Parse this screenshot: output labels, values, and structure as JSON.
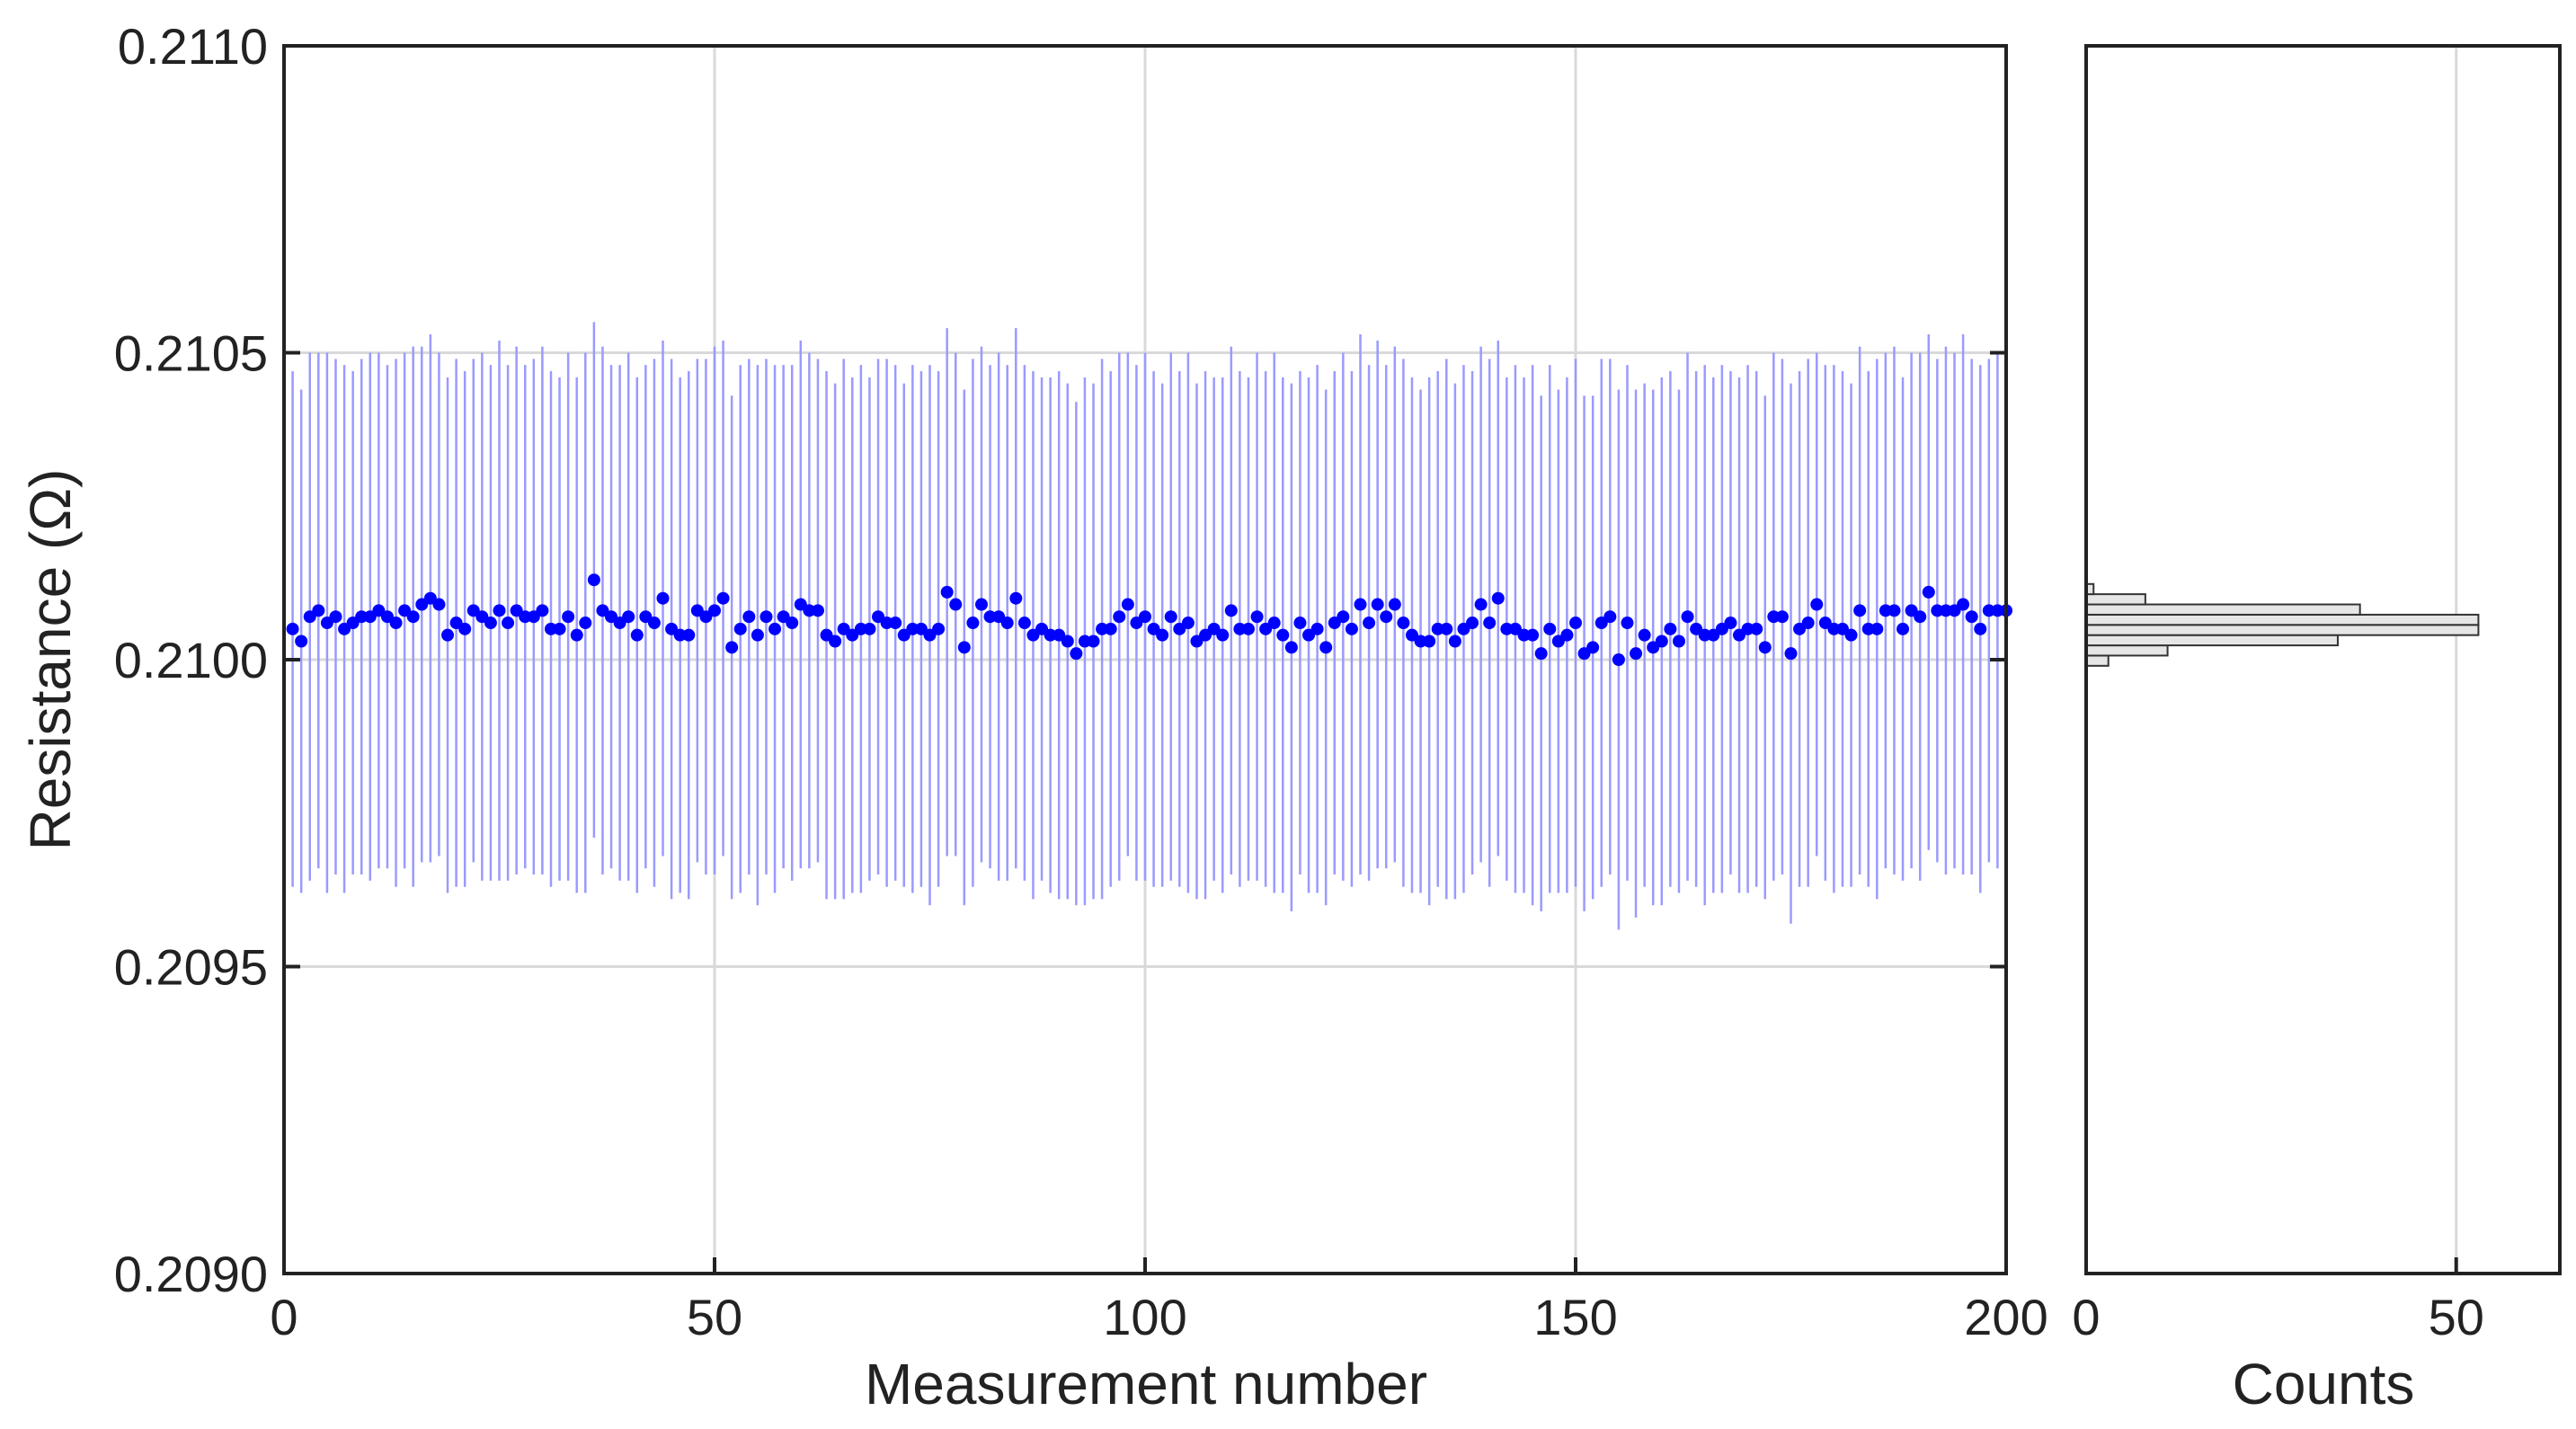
{
  "chart_data": [
    {
      "type": "scatter",
      "xlabel": "Measurement number",
      "ylabel": "Resistance (Ω)",
      "x": [
        1,
        2,
        3,
        4,
        5,
        6,
        7,
        8,
        9,
        10,
        11,
        12,
        13,
        14,
        15,
        16,
        17,
        18,
        19,
        20,
        21,
        22,
        23,
        24,
        25,
        26,
        27,
        28,
        29,
        30,
        31,
        32,
        33,
        34,
        35,
        36,
        37,
        38,
        39,
        40,
        41,
        42,
        43,
        44,
        45,
        46,
        47,
        48,
        49,
        50,
        51,
        52,
        53,
        54,
        55,
        56,
        57,
        58,
        59,
        60,
        61,
        62,
        63,
        64,
        65,
        66,
        67,
        68,
        69,
        70,
        71,
        72,
        73,
        74,
        75,
        76,
        77,
        78,
        79,
        80,
        81,
        82,
        83,
        84,
        85,
        86,
        87,
        88,
        89,
        90,
        91,
        92,
        93,
        94,
        95,
        96,
        97,
        98,
        99,
        100,
        101,
        102,
        103,
        104,
        105,
        106,
        107,
        108,
        109,
        110,
        111,
        112,
        113,
        114,
        115,
        116,
        117,
        118,
        119,
        120,
        121,
        122,
        123,
        124,
        125,
        126,
        127,
        128,
        129,
        130,
        131,
        132,
        133,
        134,
        135,
        136,
        137,
        138,
        139,
        140,
        141,
        142,
        143,
        144,
        145,
        146,
        147,
        148,
        149,
        150,
        151,
        152,
        153,
        154,
        155,
        156,
        157,
        158,
        159,
        160,
        161,
        162,
        163,
        164,
        165,
        166,
        167,
        168,
        169,
        170,
        171,
        172,
        173,
        174,
        175,
        176,
        177,
        178,
        179,
        180,
        181,
        182,
        183,
        184,
        185,
        186,
        187,
        188,
        189,
        190,
        191,
        192,
        193,
        194,
        195,
        196,
        197,
        198,
        199,
        200
      ],
      "values": [
        0.21005,
        0.21003,
        0.21007,
        0.21008,
        0.21006,
        0.21007,
        0.21005,
        0.21006,
        0.21007,
        0.21007,
        0.21008,
        0.21007,
        0.21006,
        0.21008,
        0.21007,
        0.21009,
        0.2101,
        0.21009,
        0.21004,
        0.21006,
        0.21005,
        0.21008,
        0.21007,
        0.21006,
        0.21008,
        0.21006,
        0.21008,
        0.21007,
        0.21007,
        0.21008,
        0.21005,
        0.21005,
        0.21007,
        0.21004,
        0.21006,
        0.21013,
        0.21008,
        0.21007,
        0.21006,
        0.21007,
        0.21004,
        0.21007,
        0.21006,
        0.2101,
        0.21005,
        0.21004,
        0.21004,
        0.21008,
        0.21007,
        0.21008,
        0.2101,
        0.21002,
        0.21005,
        0.21007,
        0.21004,
        0.21007,
        0.21005,
        0.21007,
        0.21006,
        0.21009,
        0.21008,
        0.21008,
        0.21004,
        0.21003,
        0.21005,
        0.21004,
        0.21005,
        0.21005,
        0.21007,
        0.21006,
        0.21006,
        0.21004,
        0.21005,
        0.21005,
        0.21004,
        0.21005,
        0.21011,
        0.21009,
        0.21002,
        0.21006,
        0.21009,
        0.21007,
        0.21007,
        0.21006,
        0.2101,
        0.21006,
        0.21004,
        0.21005,
        0.21004,
        0.21004,
        0.21003,
        0.21001,
        0.21003,
        0.21003,
        0.21005,
        0.21005,
        0.21007,
        0.21009,
        0.21006,
        0.21007,
        0.21005,
        0.21004,
        0.21007,
        0.21005,
        0.21006,
        0.21003,
        0.21004,
        0.21005,
        0.21004,
        0.21008,
        0.21005,
        0.21005,
        0.21007,
        0.21005,
        0.21006,
        0.21004,
        0.21002,
        0.21006,
        0.21004,
        0.21005,
        0.21002,
        0.21006,
        0.21007,
        0.21005,
        0.21009,
        0.21006,
        0.21009,
        0.21007,
        0.21009,
        0.21006,
        0.21004,
        0.21003,
        0.21003,
        0.21005,
        0.21005,
        0.21003,
        0.21005,
        0.21006,
        0.21009,
        0.21006,
        0.2101,
        0.21005,
        0.21005,
        0.21004,
        0.21004,
        0.21001,
        0.21005,
        0.21003,
        0.21004,
        0.21006,
        0.21001,
        0.21002,
        0.21006,
        0.21007,
        0.21,
        0.21006,
        0.21001,
        0.21004,
        0.21002,
        0.21003,
        0.21005,
        0.21003,
        0.21007,
        0.21005,
        0.21004,
        0.21004,
        0.21005,
        0.21006,
        0.21004,
        0.21005,
        0.21005,
        0.21002,
        0.21007,
        0.21007,
        0.21001,
        0.21005,
        0.21006,
        0.21009,
        0.21006,
        0.21005,
        0.21005,
        0.21004,
        0.21008,
        0.21005,
        0.21005,
        0.21008,
        0.21008,
        0.21005,
        0.21008,
        0.21007,
        0.21011,
        0.21008,
        0.21008,
        0.21008,
        0.21009,
        0.21007,
        0.21005,
        0.21008,
        0.21008,
        0.21008
      ],
      "errors": [
        0.00042,
        0.00041,
        0.00043,
        0.00042,
        0.00044,
        0.00042,
        0.00043,
        0.00041,
        0.00042,
        0.00043,
        0.00042,
        0.00041,
        0.00043,
        0.00042,
        0.00044,
        0.00042,
        0.00043,
        0.00041,
        0.00042,
        0.00043,
        0.00042,
        0.00041,
        0.00043,
        0.00042,
        0.00044,
        0.00042,
        0.00043,
        0.00041,
        0.00042,
        0.00043,
        0.00042,
        0.00041,
        0.00043,
        0.00042,
        0.00044,
        0.00042,
        0.00043,
        0.00041,
        0.00042,
        0.00043,
        0.00042,
        0.00041,
        0.00043,
        0.00042,
        0.00044,
        0.00042,
        0.00043,
        0.00041,
        0.00042,
        0.00043,
        0.00042,
        0.00041,
        0.00043,
        0.00042,
        0.00044,
        0.00042,
        0.00043,
        0.00041,
        0.00042,
        0.00043,
        0.00042,
        0.00041,
        0.00043,
        0.00042,
        0.00044,
        0.00042,
        0.00043,
        0.00041,
        0.00042,
        0.00043,
        0.00042,
        0.00041,
        0.00043,
        0.00042,
        0.00044,
        0.00042,
        0.00043,
        0.00041,
        0.00042,
        0.00043,
        0.00042,
        0.00041,
        0.00043,
        0.00042,
        0.00044,
        0.00042,
        0.00043,
        0.00041,
        0.00042,
        0.00043,
        0.00042,
        0.00041,
        0.00043,
        0.00042,
        0.00044,
        0.00042,
        0.00043,
        0.00041,
        0.00042,
        0.00043,
        0.00042,
        0.00041,
        0.00043,
        0.00042,
        0.00044,
        0.00042,
        0.00043,
        0.00041,
        0.00042,
        0.00043,
        0.00042,
        0.00041,
        0.00043,
        0.00042,
        0.00044,
        0.00042,
        0.00043,
        0.00041,
        0.00042,
        0.00043,
        0.00042,
        0.00041,
        0.00043,
        0.00042,
        0.00044,
        0.00042,
        0.00043,
        0.00041,
        0.00042,
        0.00043,
        0.00042,
        0.00041,
        0.00043,
        0.00042,
        0.00044,
        0.00042,
        0.00043,
        0.00041,
        0.00042,
        0.00043,
        0.00042,
        0.00041,
        0.00043,
        0.00042,
        0.00044,
        0.00042,
        0.00043,
        0.00041,
        0.00042,
        0.00043,
        0.00042,
        0.00041,
        0.00043,
        0.00042,
        0.00044,
        0.00042,
        0.00043,
        0.00041,
        0.00042,
        0.00043,
        0.00042,
        0.00041,
        0.00043,
        0.00042,
        0.00044,
        0.00042,
        0.00043,
        0.00041,
        0.00042,
        0.00043,
        0.00042,
        0.00041,
        0.00043,
        0.00042,
        0.00044,
        0.00042,
        0.00043,
        0.00041,
        0.00042,
        0.00043,
        0.00042,
        0.00041,
        0.00043,
        0.00042,
        0.00044,
        0.00042,
        0.00043,
        0.00041,
        0.00042,
        0.00043,
        0.00042,
        0.00041,
        0.00043,
        0.00042,
        0.00044,
        0.00042,
        0.00043,
        0.00041,
        0.00042,
        0.00043
      ],
      "color": "#0000ff",
      "error_color": "#9a9aff",
      "xlim": [
        0,
        200
      ],
      "xticks": [
        0,
        50,
        100,
        150,
        200
      ],
      "ylim": [
        0.209,
        0.211
      ],
      "yticks": [
        {
          "value": 0.209,
          "label": "0.2090"
        },
        0.2095,
        {
          "value": 0.21,
          "label": "0.2100"
        },
        0.2105,
        {
          "value": 0.211,
          "label": "0.2110"
        }
      ],
      "grid": true
    },
    {
      "type": "histogram",
      "orientation": "horizontal",
      "xlabel": "Counts",
      "bins": [
        0.20999,
        0.2100067,
        0.2100233,
        0.21004,
        0.2100567,
        0.2100733,
        0.21009,
        0.2101067,
        0.2101233
      ],
      "counts": [
        3,
        11,
        34,
        53,
        53,
        37,
        8,
        1
      ],
      "color": "#e6e6e6",
      "xlim": [
        0,
        64
      ],
      "xticks": [
        0,
        50
      ],
      "ylim": [
        0.209,
        0.211
      ],
      "grid": true
    }
  ]
}
